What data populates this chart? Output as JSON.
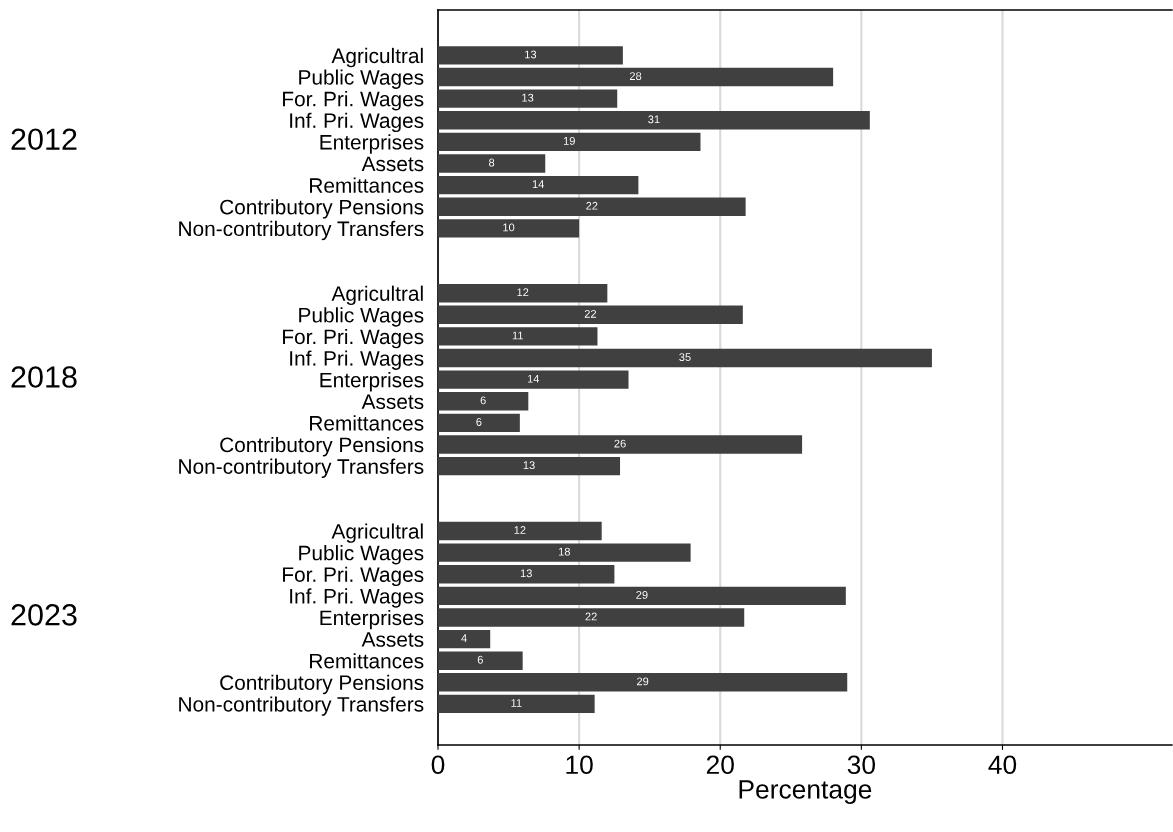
{
  "chart_data": {
    "type": "bar",
    "orientation": "horizontal",
    "xlabel": "Percentage",
    "categories": [
      "Agricultral",
      "Public Wages",
      "For. Pri. Wages",
      "Inf. Pri. Wages",
      "Enterprises",
      "Assets",
      "Remittances",
      "Contributory Pensions",
      "Non-contributory Transfers",
      null,
      null,
      "Agricultral",
      "Public Wages",
      "For. Pri. Wages",
      "Inf. Pri. Wages",
      "Enterprises",
      "Assets",
      "Remittances",
      "Contributory Pensions",
      "Non-contributory Transfers",
      null,
      null,
      "Agricultral",
      "Public Wages",
      "For. Pri. Wages",
      "Inf. Pri. Wages",
      "Enterprises",
      "Assets",
      "Remittances",
      "Contributory Pensions",
      "Non-contributory Transfers"
    ],
    "values": [
      13.1,
      28.0,
      12.7,
      30.6,
      18.6,
      7.6,
      14.2,
      21.8,
      10.0,
      null,
      null,
      12.0,
      21.6,
      11.3,
      35.0,
      13.5,
      6.4,
      5.8,
      25.8,
      12.9,
      null,
      null,
      11.6,
      17.9,
      12.5,
      28.9,
      21.7,
      3.7,
      6.0,
      29.0,
      11.1
    ],
    "value_labels": [
      "13",
      "28",
      "13",
      "31",
      "19",
      "8",
      "14",
      "22",
      "10",
      null,
      null,
      "12",
      "22",
      "11",
      "35",
      "14",
      "6",
      "6",
      "26",
      "13",
      null,
      null,
      "12",
      "18",
      "13",
      "29",
      "22",
      "4",
      "6",
      "29",
      "11"
    ],
    "color": "#404040",
    "xlim": [
      0,
      52
    ],
    "xticks": [
      0,
      10,
      20,
      30,
      40
    ],
    "grid": "x",
    "annotations": [
      "2012",
      "2018",
      "2023"
    ]
  }
}
